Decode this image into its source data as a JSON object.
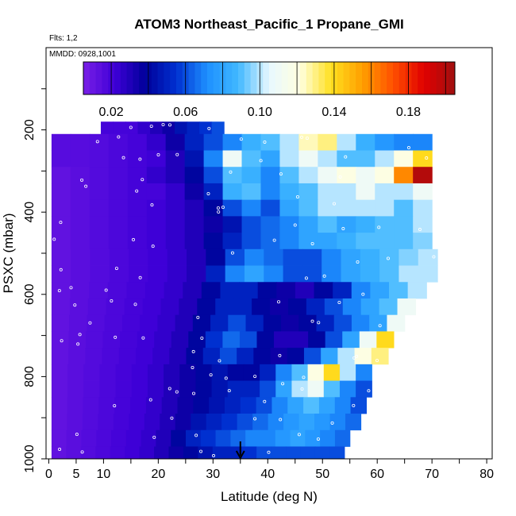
{
  "chart_data": {
    "type": "heatmap",
    "title": "ATOM3 Northeast_Pacific_1 Propane_GMI",
    "flights_note": "Flts: 1,2",
    "date_note": "MMDD: 0928,1001",
    "xlabel": "Latitude (deg N)",
    "ylabel": "PSXC (mbar)",
    "xlim": [
      -0.5,
      81
    ],
    "ylim": [
      1000,
      0
    ],
    "x_ticks": [
      0,
      5,
      10,
      20,
      30,
      40,
      50,
      60,
      70,
      80
    ],
    "y_ticks": [
      200,
      400,
      600,
      800,
      1000
    ],
    "colorbar": {
      "range": [
        0.005,
        0.205
      ],
      "ticks": [
        0.02,
        0.06,
        0.1,
        0.14,
        0.18
      ],
      "tick_labels": [
        "0.02",
        "0.06",
        "0.10",
        "0.14",
        "0.18"
      ],
      "colors": [
        "#7a1fe6",
        "#3f00d8",
        "#00009a",
        "#0030d0",
        "#1e90ff",
        "#40b8ff",
        "#e8f8ff",
        "#ffffe0",
        "#ffe020",
        "#ffa000",
        "#ff5000",
        "#e00000",
        "#a01010"
      ]
    },
    "flight_track_marker_latitude": 35,
    "series": [
      {
        "p_top": 180,
        "p_bot": 210,
        "lat_min": 9.5,
        "lat_max": 32,
        "values": [
          0.02,
          0.02,
          0.02,
          0.025,
          0.03,
          0.035,
          0.045,
          0.05,
          0.055,
          0.06
        ]
      },
      {
        "p_top": 210,
        "p_bot": 250,
        "lat_min": 0.5,
        "lat_max": 70,
        "values": [
          0.015,
          0.015,
          0.016,
          0.018,
          0.02,
          0.025,
          0.035,
          0.05,
          0.06,
          0.07,
          0.085,
          0.09,
          0.1,
          0.125,
          0.13,
          0.1,
          0.085,
          0.075,
          0.07,
          0.07
        ]
      },
      {
        "p_top": 250,
        "p_bot": 290,
        "lat_min": 0.5,
        "lat_max": 70,
        "values": [
          0.015,
          0.015,
          0.016,
          0.018,
          0.02,
          0.022,
          0.03,
          0.045,
          0.07,
          0.11,
          0.09,
          0.08,
          0.1,
          0.11,
          0.1,
          0.09,
          0.09,
          0.1,
          0.12,
          0.14
        ]
      },
      {
        "p_top": 290,
        "p_bot": 330,
        "lat_min": 0.5,
        "lat_max": 70,
        "values": [
          0.012,
          0.014,
          0.016,
          0.018,
          0.02,
          0.025,
          0.03,
          0.04,
          0.06,
          0.09,
          0.085,
          0.07,
          0.09,
          0.1,
          0.11,
          0.12,
          0.11,
          0.12,
          0.16,
          0.2
        ]
      },
      {
        "p_top": 330,
        "p_bot": 370,
        "lat_min": 0.5,
        "lat_max": 70,
        "values": [
          0.012,
          0.014,
          0.016,
          0.018,
          0.02,
          0.02,
          0.025,
          0.035,
          0.05,
          0.085,
          0.09,
          0.07,
          0.085,
          0.09,
          0.1,
          0.1,
          0.11,
          0.1,
          0.1,
          0.11
        ]
      },
      {
        "p_top": 370,
        "p_bot": 410,
        "lat_min": 0.5,
        "lat_max": 70,
        "values": [
          0.012,
          0.014,
          0.016,
          0.018,
          0.02,
          0.022,
          0.025,
          0.03,
          0.04,
          0.06,
          0.07,
          0.06,
          0.08,
          0.09,
          0.1,
          0.1,
          0.1,
          0.1,
          0.09,
          0.1
        ]
      },
      {
        "p_top": 410,
        "p_bot": 450,
        "lat_min": 0.5,
        "lat_max": 70,
        "values": [
          0.012,
          0.014,
          0.016,
          0.018,
          0.02,
          0.022,
          0.025,
          0.03,
          0.035,
          0.045,
          0.06,
          0.065,
          0.07,
          0.08,
          0.09,
          0.08,
          0.085,
          0.09,
          0.09,
          0.1
        ]
      },
      {
        "p_top": 450,
        "p_bot": 490,
        "lat_min": 0.5,
        "lat_max": 70,
        "values": [
          0.012,
          0.014,
          0.016,
          0.018,
          0.02,
          0.022,
          0.025,
          0.03,
          0.04,
          0.05,
          0.06,
          0.065,
          0.07,
          0.08,
          0.08,
          0.085,
          0.09,
          0.09,
          0.09,
          0.095
        ]
      },
      {
        "p_top": 490,
        "p_bot": 530,
        "lat_min": 0.5,
        "lat_max": 71,
        "values": [
          0.012,
          0.014,
          0.016,
          0.018,
          0.02,
          0.022,
          0.025,
          0.03,
          0.04,
          0.06,
          0.07,
          0.065,
          0.06,
          0.06,
          0.07,
          0.08,
          0.085,
          0.09,
          0.095,
          0.1
        ]
      },
      {
        "p_top": 530,
        "p_bot": 570,
        "lat_min": 0.5,
        "lat_max": 71,
        "values": [
          0.012,
          0.014,
          0.016,
          0.018,
          0.02,
          0.022,
          0.025,
          0.03,
          0.05,
          0.07,
          0.08,
          0.07,
          0.06,
          0.06,
          0.07,
          0.08,
          0.085,
          0.09,
          0.1,
          0.1
        ]
      },
      {
        "p_top": 570,
        "p_bot": 610,
        "lat_min": 0.5,
        "lat_max": 69,
        "values": [
          0.012,
          0.014,
          0.016,
          0.018,
          0.02,
          0.022,
          0.025,
          0.03,
          0.04,
          0.05,
          0.05,
          0.04,
          0.035,
          0.03,
          0.04,
          0.05,
          0.07,
          0.08,
          0.09,
          0.1
        ]
      },
      {
        "p_top": 610,
        "p_bot": 650,
        "lat_min": 0.5,
        "lat_max": 67,
        "values": [
          0.012,
          0.014,
          0.016,
          0.018,
          0.02,
          0.022,
          0.025,
          0.03,
          0.04,
          0.05,
          0.05,
          0.04,
          0.035,
          0.04,
          0.05,
          0.06,
          0.07,
          0.08,
          0.09,
          0.11
        ]
      },
      {
        "p_top": 650,
        "p_bot": 690,
        "lat_min": 0.5,
        "lat_max": 65,
        "values": [
          0.012,
          0.014,
          0.016,
          0.018,
          0.02,
          0.022,
          0.025,
          0.03,
          0.04,
          0.05,
          0.06,
          0.05,
          0.04,
          0.035,
          0.04,
          0.05,
          0.06,
          0.07,
          0.08,
          0.11
        ]
      },
      {
        "p_top": 690,
        "p_bot": 730,
        "lat_min": 0.5,
        "lat_max": 63,
        "values": [
          0.012,
          0.014,
          0.016,
          0.018,
          0.02,
          0.022,
          0.025,
          0.03,
          0.04,
          0.055,
          0.065,
          0.06,
          0.04,
          0.03,
          0.03,
          0.04,
          0.06,
          0.08,
          0.11,
          0.14
        ]
      },
      {
        "p_top": 730,
        "p_bot": 770,
        "lat_min": 0.5,
        "lat_max": 62,
        "values": [
          0.012,
          0.014,
          0.016,
          0.018,
          0.02,
          0.022,
          0.025,
          0.03,
          0.04,
          0.05,
          0.06,
          0.05,
          0.04,
          0.035,
          0.04,
          0.06,
          0.08,
          0.1,
          0.12,
          0.13
        ]
      },
      {
        "p_top": 770,
        "p_bot": 810,
        "lat_min": 0.5,
        "lat_max": 59,
        "values": [
          0.012,
          0.014,
          0.016,
          0.018,
          0.02,
          0.022,
          0.025,
          0.03,
          0.035,
          0.04,
          0.045,
          0.04,
          0.04,
          0.05,
          0.07,
          0.09,
          0.12,
          0.14,
          0.1,
          0.07
        ]
      },
      {
        "p_top": 810,
        "p_bot": 850,
        "lat_min": 0.5,
        "lat_max": 59,
        "values": [
          0.012,
          0.014,
          0.016,
          0.018,
          0.02,
          0.022,
          0.025,
          0.03,
          0.035,
          0.04,
          0.045,
          0.05,
          0.05,
          0.06,
          0.08,
          0.1,
          0.11,
          0.09,
          0.07,
          0.06
        ]
      },
      {
        "p_top": 850,
        "p_bot": 890,
        "lat_min": 0.5,
        "lat_max": 58,
        "values": [
          0.012,
          0.014,
          0.016,
          0.018,
          0.02,
          0.022,
          0.025,
          0.03,
          0.035,
          0.04,
          0.045,
          0.05,
          0.055,
          0.06,
          0.07,
          0.08,
          0.09,
          0.08,
          0.07,
          0.06
        ]
      },
      {
        "p_top": 890,
        "p_bot": 930,
        "lat_min": 0.5,
        "lat_max": 57,
        "values": [
          0.012,
          0.014,
          0.016,
          0.018,
          0.02,
          0.022,
          0.025,
          0.03,
          0.035,
          0.045,
          0.05,
          0.055,
          0.06,
          0.065,
          0.07,
          0.075,
          0.08,
          0.075,
          0.07,
          0.065
        ]
      },
      {
        "p_top": 930,
        "p_bot": 970,
        "lat_min": 0.5,
        "lat_max": 55,
        "values": [
          0.012,
          0.014,
          0.016,
          0.018,
          0.02,
          0.022,
          0.025,
          0.03,
          0.04,
          0.05,
          0.055,
          0.06,
          0.065,
          0.07,
          0.07,
          0.075,
          0.08,
          0.075,
          0.07,
          0.065
        ]
      },
      {
        "p_top": 970,
        "p_bot": 1000,
        "lat_min": 0.5,
        "lat_max": 54,
        "values": [
          0.012,
          0.014,
          0.016,
          0.018,
          0.02,
          0.022,
          0.025,
          0.03,
          0.035,
          0.04,
          0.045,
          0.05,
          0.05,
          0.055,
          0.06,
          0.06,
          0.06,
          0.06,
          0.06,
          0.06
        ]
      }
    ]
  }
}
